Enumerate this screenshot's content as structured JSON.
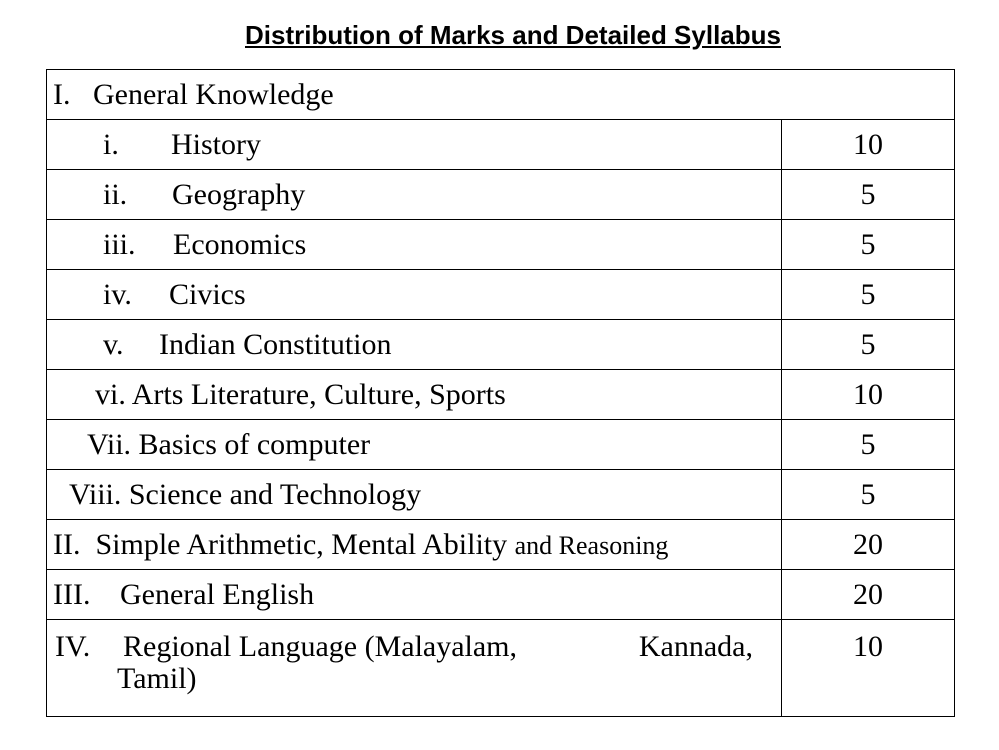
{
  "title": "Distribution of Marks and Detailed Syllabus",
  "section1": {
    "num": "I.",
    "label": "General Knowledge"
  },
  "rows": [
    {
      "num": "i.",
      "label": "History",
      "marks": "10"
    },
    {
      "num": "ii.",
      "label": "Geography",
      "marks": "5"
    },
    {
      "num": "iii.",
      "label": "Economics",
      "marks": "5"
    },
    {
      "num": "iv.",
      "label": "Civics",
      "marks": "5"
    },
    {
      "num": "v.",
      "label": "Indian Constitution",
      "marks": "5"
    },
    {
      "num": "vi.",
      "label": "Arts Literature, Culture, Sports",
      "marks": "10"
    },
    {
      "num": "Vii.",
      "label": "Basics of computer",
      "marks": "5"
    },
    {
      "num": "Viii.",
      "label": "Science and Technology",
      "marks": "5"
    }
  ],
  "section2": {
    "num": "II.",
    "label": "Simple Arithmetic, Mental Ability",
    "label_small": "and Reasoning",
    "marks": "20"
  },
  "section3": {
    "num": "III.",
    "label": "General English",
    "marks": "20"
  },
  "section4": {
    "num": "IV.",
    "label_a": "Regional Language (Malayalam,",
    "label_b": "Kannada,",
    "label_c": "Tamil)",
    "marks": "10"
  }
}
